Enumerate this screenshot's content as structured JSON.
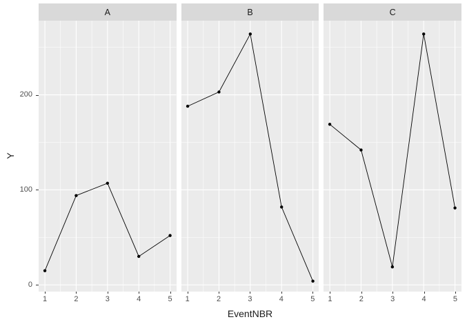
{
  "chart_data": {
    "type": "line",
    "style": "ggplot2-faceted-line-chart",
    "title": "",
    "xlabel": "EventNBR",
    "ylabel": "Y",
    "facet_labels": [
      "A",
      "B",
      "C"
    ],
    "x": [
      1,
      2,
      3,
      4,
      5
    ],
    "series": [
      {
        "name": "A",
        "values": [
          15,
          94,
          107,
          30,
          52
        ]
      },
      {
        "name": "B",
        "values": [
          188,
          203,
          264,
          82,
          4
        ]
      },
      {
        "name": "C",
        "values": [
          169,
          142,
          19,
          264,
          81
        ]
      }
    ],
    "xlim": [
      0.8,
      5.2
    ],
    "ylim": [
      -7,
      278
    ],
    "x_ticks": [
      1,
      2,
      3,
      4,
      5
    ],
    "y_ticks": [
      0,
      100,
      200
    ],
    "x_minor_gridlines": [
      1.5,
      2.5,
      3.5,
      4.5
    ],
    "y_minor_gridlines": [
      50,
      150,
      250
    ],
    "grid": "on",
    "legend": "none"
  },
  "colors": {
    "page_background": "#ffffff",
    "panel_background": "#ebebeb",
    "strip_background": "#d9d9d9",
    "gridline": "#ffffff",
    "line": "#000000",
    "point": "#000000",
    "tick_mark": "#333333",
    "tick_label": "#4d4d4d",
    "axis_title": "#1a1a1a",
    "strip_text": "#1a1a1a"
  }
}
